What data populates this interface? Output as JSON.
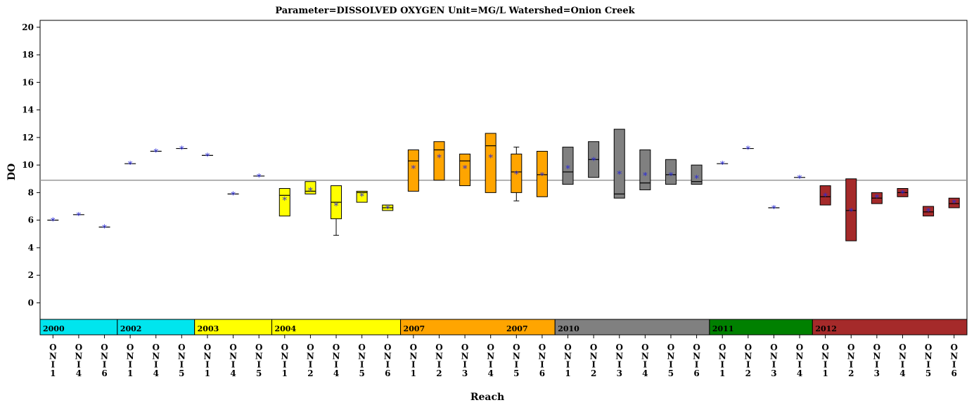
{
  "chart_data": {
    "type": "box",
    "title": "Parameter=DISSOLVED OXYGEN Unit=MG/L Watershed=Onion Creek",
    "xlabel": "Reach",
    "ylabel": "DO",
    "ylim": [
      -1.2,
      20.5
    ],
    "yticks": [
      0,
      2,
      4,
      6,
      8,
      10,
      12,
      14,
      16,
      18,
      20
    ],
    "reference_line": 8.9,
    "grid": false,
    "year_bands": [
      {
        "label": "2000",
        "color": "#00e5ee",
        "start": 0,
        "end": 3,
        "labels_at": [
          0
        ]
      },
      {
        "label": "2002",
        "color": "#00e5ee",
        "start": 3,
        "end": 6,
        "labels_at": [
          3
        ]
      },
      {
        "label": "2003",
        "color": "#ffff00",
        "start": 6,
        "end": 9,
        "labels_at": [
          6
        ]
      },
      {
        "label": "2004",
        "color": "#ffff00",
        "start": 9,
        "end": 14,
        "labels_at": [
          9
        ]
      },
      {
        "label": "2007",
        "color": "#ffa500",
        "start": 14,
        "end": 20,
        "labels_at": [
          14,
          18
        ]
      },
      {
        "label": "2010",
        "color": "#808080",
        "start": 20,
        "end": 26,
        "labels_at": [
          20
        ]
      },
      {
        "label": "2011",
        "color": "#008000",
        "start": 26,
        "end": 30,
        "labels_at": [
          26
        ]
      },
      {
        "label": "2012",
        "color": "#a52a2a",
        "start": 30,
        "end": 36,
        "labels_at": [
          30
        ]
      }
    ],
    "categories": [
      "ONI1",
      "ONI4",
      "ONI6",
      "ONI1",
      "ONI4",
      "ONI5",
      "ONI1",
      "ONI4",
      "ONI5",
      "ONI1",
      "ONI2",
      "ONI4",
      "ONI5",
      "ONI6",
      "ONI1",
      "ONI2",
      "ONI3",
      "ONI4",
      "ONI5",
      "ONI6",
      "ONI1",
      "ONI2",
      "ONI3",
      "ONI4",
      "ONI5",
      "ONI6",
      "ONI1",
      "ONI2",
      "ONI3",
      "ONI4",
      "ONI1",
      "ONI2",
      "ONI3",
      "ONI4",
      "ONI5",
      "ONI6"
    ],
    "boxes": [
      {
        "year": "2000",
        "reach": "ONI1",
        "min": 6.0,
        "q1": 6.0,
        "median": 6.0,
        "q3": 6.0,
        "max": 6.0,
        "mean": 6.0
      },
      {
        "year": "2000",
        "reach": "ONI4",
        "min": 6.4,
        "q1": 6.4,
        "median": 6.4,
        "q3": 6.4,
        "max": 6.4,
        "mean": 6.4
      },
      {
        "year": "2000",
        "reach": "ONI6",
        "min": 5.5,
        "q1": 5.5,
        "median": 5.5,
        "q3": 5.5,
        "max": 5.5,
        "mean": 5.5
      },
      {
        "year": "2002",
        "reach": "ONI1",
        "min": 10.1,
        "q1": 10.1,
        "median": 10.1,
        "q3": 10.1,
        "max": 10.1,
        "mean": 10.1
      },
      {
        "year": "2002",
        "reach": "ONI4",
        "min": 11.0,
        "q1": 11.0,
        "median": 11.0,
        "q3": 11.0,
        "max": 11.0,
        "mean": 11.0
      },
      {
        "year": "2002",
        "reach": "ONI5",
        "min": 11.2,
        "q1": 11.2,
        "median": 11.2,
        "q3": 11.2,
        "max": 11.2,
        "mean": 11.2
      },
      {
        "year": "2003",
        "reach": "ONI1",
        "min": 10.7,
        "q1": 10.7,
        "median": 10.7,
        "q3": 10.7,
        "max": 10.7,
        "mean": 10.7
      },
      {
        "year": "2003",
        "reach": "ONI4",
        "min": 7.9,
        "q1": 7.9,
        "median": 7.9,
        "q3": 7.9,
        "max": 7.9,
        "mean": 7.9
      },
      {
        "year": "2003",
        "reach": "ONI5",
        "min": 9.2,
        "q1": 9.2,
        "median": 9.2,
        "q3": 9.2,
        "max": 9.2,
        "mean": 9.2
      },
      {
        "year": "2004",
        "reach": "ONI1",
        "min": 6.3,
        "q1": 6.3,
        "median": 7.8,
        "q3": 8.3,
        "max": 8.3,
        "mean": 7.5
      },
      {
        "year": "2004",
        "reach": "ONI2",
        "min": 7.9,
        "q1": 7.9,
        "median": 8.1,
        "q3": 8.8,
        "max": 8.8,
        "mean": 8.2
      },
      {
        "year": "2004",
        "reach": "ONI4",
        "min": 4.9,
        "q1": 6.1,
        "median": 7.3,
        "q3": 8.5,
        "max": 8.5,
        "mean": 7.1
      },
      {
        "year": "2004",
        "reach": "ONI5",
        "min": 7.3,
        "q1": 7.3,
        "median": 8.0,
        "q3": 8.1,
        "max": 8.1,
        "mean": 7.8
      },
      {
        "year": "2004",
        "reach": "ONI6",
        "min": 6.7,
        "q1": 6.7,
        "median": 6.9,
        "q3": 7.1,
        "max": 7.1,
        "mean": 6.9
      },
      {
        "year": "2007",
        "reach": "ONI1",
        "min": 8.1,
        "q1": 8.1,
        "median": 10.3,
        "q3": 11.1,
        "max": 11.1,
        "mean": 9.8
      },
      {
        "year": "2007",
        "reach": "ONI2",
        "min": 8.9,
        "q1": 8.9,
        "median": 11.1,
        "q3": 11.7,
        "max": 11.7,
        "mean": 10.6
      },
      {
        "year": "2007",
        "reach": "ONI3",
        "min": 8.5,
        "q1": 8.5,
        "median": 10.3,
        "q3": 10.8,
        "max": 10.8,
        "mean": 9.8
      },
      {
        "year": "2007",
        "reach": "ONI4",
        "min": 8.0,
        "q1": 8.0,
        "median": 11.4,
        "q3": 12.3,
        "max": 12.3,
        "mean": 10.6
      },
      {
        "year": "2007",
        "reach": "ONI5",
        "min": 7.4,
        "q1": 8.0,
        "median": 9.5,
        "q3": 10.8,
        "max": 11.3,
        "mean": 9.4
      },
      {
        "year": "2007",
        "reach": "ONI6",
        "min": 7.7,
        "q1": 7.7,
        "median": 9.3,
        "q3": 11.0,
        "max": 11.0,
        "mean": 9.3
      },
      {
        "year": "2010",
        "reach": "ONI1",
        "min": 8.6,
        "q1": 8.6,
        "median": 9.5,
        "q3": 11.3,
        "max": 11.3,
        "mean": 9.8
      },
      {
        "year": "2010",
        "reach": "ONI2",
        "min": 9.1,
        "q1": 9.1,
        "median": 10.4,
        "q3": 11.7,
        "max": 11.7,
        "mean": 10.4
      },
      {
        "year": "2010",
        "reach": "ONI3",
        "min": 7.6,
        "q1": 7.6,
        "median": 7.9,
        "q3": 12.6,
        "max": 12.6,
        "mean": 9.4
      },
      {
        "year": "2010",
        "reach": "ONI4",
        "min": 8.2,
        "q1": 8.2,
        "median": 8.7,
        "q3": 11.1,
        "max": 11.1,
        "mean": 9.3
      },
      {
        "year": "2010",
        "reach": "ONI5",
        "min": 8.6,
        "q1": 8.6,
        "median": 9.3,
        "q3": 10.4,
        "max": 10.4,
        "mean": 9.3
      },
      {
        "year": "2010",
        "reach": "ONI6",
        "min": 8.6,
        "q1": 8.6,
        "median": 8.8,
        "q3": 10.0,
        "max": 10.0,
        "mean": 9.1
      },
      {
        "year": "2011",
        "reach": "ONI1",
        "min": 10.1,
        "q1": 10.1,
        "median": 10.1,
        "q3": 10.1,
        "max": 10.1,
        "mean": 10.1
      },
      {
        "year": "2011",
        "reach": "ONI2",
        "min": 11.2,
        "q1": 11.2,
        "median": 11.2,
        "q3": 11.2,
        "max": 11.2,
        "mean": 11.2
      },
      {
        "year": "2011",
        "reach": "ONI3",
        "min": 6.9,
        "q1": 6.9,
        "median": 6.9,
        "q3": 6.9,
        "max": 6.9,
        "mean": 6.9
      },
      {
        "year": "2011",
        "reach": "ONI4",
        "min": 9.1,
        "q1": 9.1,
        "median": 9.1,
        "q3": 9.1,
        "max": 9.1,
        "mean": 9.1
      },
      {
        "year": "2012",
        "reach": "ONI1",
        "min": 7.1,
        "q1": 7.1,
        "median": 7.7,
        "q3": 8.5,
        "max": 8.5,
        "mean": 7.8
      },
      {
        "year": "2012",
        "reach": "ONI2",
        "min": 4.5,
        "q1": 4.5,
        "median": 6.7,
        "q3": 9.0,
        "max": 9.0,
        "mean": 6.7
      },
      {
        "year": "2012",
        "reach": "ONI3",
        "min": 7.2,
        "q1": 7.2,
        "median": 7.6,
        "q3": 8.0,
        "max": 8.0,
        "mean": 7.7
      },
      {
        "year": "2012",
        "reach": "ONI4",
        "min": 7.7,
        "q1": 7.7,
        "median": 8.0,
        "q3": 8.3,
        "max": 8.3,
        "mean": 8.0
      },
      {
        "year": "2012",
        "reach": "ONI5",
        "min": 6.3,
        "q1": 6.3,
        "median": 6.6,
        "q3": 7.0,
        "max": 7.0,
        "mean": 6.7
      },
      {
        "year": "2012",
        "reach": "ONI6",
        "min": 6.9,
        "q1": 6.9,
        "median": 7.2,
        "q3": 7.6,
        "max": 7.6,
        "mean": 7.3
      }
    ]
  }
}
